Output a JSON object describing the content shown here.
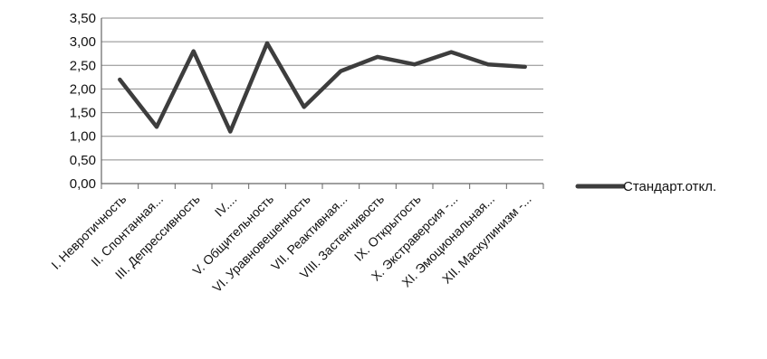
{
  "chart_data": {
    "type": "line",
    "categories": [
      "I. Невротичность",
      "II. Спонтанная...",
      "III. Депрессивность",
      "IV....",
      "V. Общительность",
      "VI. Уравновешенность",
      "VII. Реактивная...",
      "VIII. Застенчивость",
      "IX. Открытость",
      "X. Экстраверсия -...",
      "XI. Эмоциональная...",
      "XII. Маскулинизм -..."
    ],
    "series": [
      {
        "name": "Стандарт.откл.",
        "values": [
          2.2,
          1.2,
          2.8,
          1.1,
          2.97,
          1.62,
          2.38,
          2.68,
          2.52,
          2.78,
          2.52,
          2.47
        ],
        "color": "#3d3d3d"
      }
    ],
    "y_ticks": [
      "0,00",
      "0,50",
      "1,00",
      "1,50",
      "2,00",
      "2,50",
      "3,00",
      "3,50"
    ],
    "ylim": [
      0,
      3.5
    ],
    "grid": true,
    "legend_position": "right"
  }
}
